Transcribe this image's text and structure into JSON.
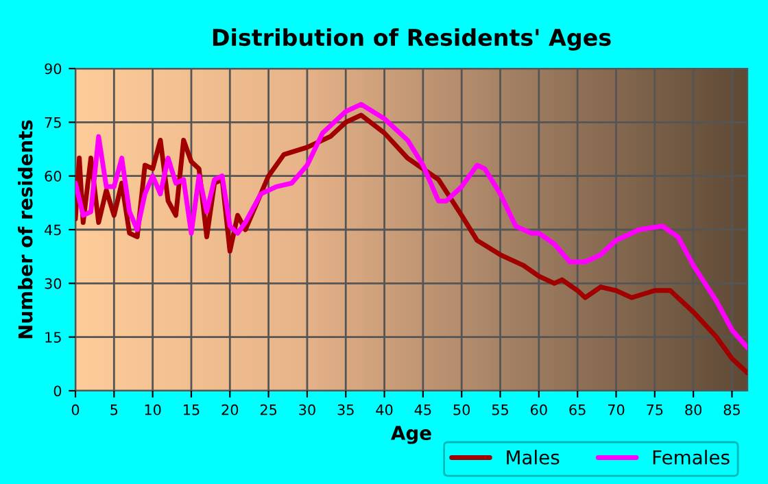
{
  "chart_data": {
    "type": "line",
    "title": "Distribution of Residents' Ages",
    "xlabel": "Age",
    "ylabel": "Number of residents",
    "xlim": [
      0,
      87
    ],
    "xticks": [
      0,
      5,
      10,
      15,
      20,
      25,
      30,
      35,
      40,
      45,
      50,
      55,
      60,
      65,
      70,
      75,
      80,
      85
    ],
    "ylim": [
      0,
      90
    ],
    "yticks": [
      0,
      15,
      30,
      45,
      60,
      75,
      90
    ],
    "grid": true,
    "legend": "bottom right",
    "line_style": "solid",
    "marker": "none",
    "series": [
      {
        "name": "Males",
        "color": "#a00000",
        "x": [
          0,
          0.5,
          1,
          2,
          3,
          4,
          5,
          6,
          7,
          8,
          9,
          10,
          11,
          12,
          13,
          14,
          15,
          16,
          17,
          18,
          19,
          20,
          21,
          22,
          23,
          25,
          27,
          30,
          33,
          35,
          37,
          40,
          43,
          47,
          50,
          52,
          55,
          58,
          60,
          62,
          63,
          65,
          66,
          68,
          70,
          72,
          75,
          77,
          80,
          83,
          85,
          87
        ],
        "values": [
          48,
          65,
          47,
          65,
          47,
          56,
          49,
          58,
          44,
          43,
          63,
          62,
          70,
          53,
          49,
          70,
          64,
          62,
          43,
          58,
          59,
          39,
          49,
          45,
          50,
          60,
          66,
          68,
          71,
          75,
          77,
          72,
          65,
          59,
          49,
          42,
          38,
          35,
          32,
          30,
          31,
          28,
          26,
          29,
          28,
          26,
          28,
          28,
          22,
          15,
          9,
          5
        ]
      },
      {
        "name": "Females",
        "color": "#ff00ff",
        "x": [
          0,
          1,
          2,
          3,
          4,
          5,
          6,
          7,
          8,
          9,
          10,
          11,
          12,
          13,
          14,
          15,
          16,
          17,
          18,
          19,
          20,
          21,
          22,
          24,
          26,
          28,
          30,
          32,
          35,
          37,
          40,
          43,
          45,
          47,
          48,
          50,
          52,
          53,
          55,
          57,
          59,
          60,
          62,
          64,
          66,
          68,
          70,
          73,
          76,
          78,
          80,
          83,
          85,
          87
        ],
        "values": [
          58,
          49,
          50,
          71,
          57,
          57,
          65,
          50,
          45,
          55,
          60,
          55,
          65,
          58,
          59,
          44,
          60,
          50,
          59,
          60,
          46,
          44,
          47,
          55,
          57,
          58,
          63,
          72,
          78,
          80,
          76,
          70,
          63,
          53,
          53,
          57,
          63,
          62,
          55,
          46,
          44,
          44,
          41,
          36,
          36,
          38,
          42,
          45,
          46,
          43,
          35,
          25,
          17,
          12
        ]
      }
    ]
  }
}
